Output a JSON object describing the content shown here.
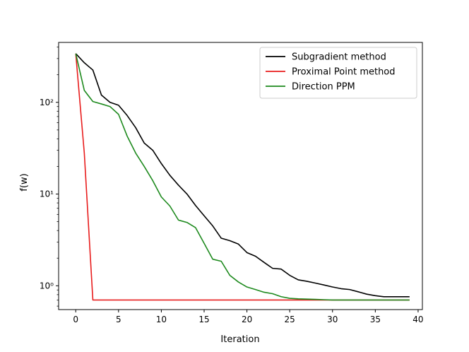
{
  "chart_data": {
    "type": "line",
    "title": "",
    "xlabel": "Iteration",
    "ylabel": "f(w)",
    "xlim": [
      -2,
      40.5
    ],
    "ylim": [
      0.55,
      450
    ],
    "yscale": "log",
    "xticks": [
      0,
      5,
      10,
      15,
      20,
      25,
      30,
      35,
      40
    ],
    "xtick_labels": [
      "0",
      "5",
      "10",
      "15",
      "20",
      "25",
      "30",
      "35",
      "40"
    ],
    "yticks": [
      1,
      10,
      100
    ],
    "ytick_labels": [
      "10⁰",
      "10¹",
      "10²"
    ],
    "grid": false,
    "legend_position": "top-right",
    "series": [
      {
        "name": "Subgradient method",
        "color": "#000000",
        "x": [
          0,
          1,
          2,
          3,
          4,
          5,
          6,
          7,
          8,
          9,
          10,
          11,
          12,
          13,
          14,
          15,
          16,
          17,
          18,
          19,
          20,
          21,
          22,
          23,
          24,
          25,
          26,
          27,
          28,
          29,
          30,
          31,
          32,
          33,
          34,
          35,
          36,
          37,
          38,
          39
        ],
        "y": [
          340,
          270,
          225,
          120,
          100,
          93,
          72,
          53,
          36,
          30,
          21.5,
          16,
          12.5,
          10,
          7.5,
          5.8,
          4.5,
          3.3,
          3.1,
          2.85,
          2.3,
          2.1,
          1.8,
          1.55,
          1.52,
          1.3,
          1.16,
          1.12,
          1.07,
          1.02,
          0.97,
          0.93,
          0.91,
          0.86,
          0.81,
          0.78,
          0.76,
          0.76,
          0.76,
          0.76
        ]
      },
      {
        "name": "Proximal Point method",
        "color": "#e81c1c",
        "x": [
          0,
          1,
          2,
          3,
          4,
          5,
          6,
          7,
          8,
          9,
          10,
          11,
          12,
          13,
          14,
          15,
          16,
          17,
          18,
          19,
          20,
          21,
          22,
          23,
          24,
          25,
          26,
          27,
          28,
          29,
          30,
          31,
          32,
          33,
          34,
          35,
          36,
          37,
          38,
          39
        ],
        "y": [
          340,
          28,
          0.7,
          0.7,
          0.7,
          0.7,
          0.7,
          0.7,
          0.7,
          0.7,
          0.7,
          0.7,
          0.7,
          0.7,
          0.7,
          0.7,
          0.7,
          0.7,
          0.7,
          0.7,
          0.7,
          0.7,
          0.7,
          0.7,
          0.7,
          0.7,
          0.7,
          0.7,
          0.7,
          0.7,
          0.7,
          0.7,
          0.7,
          0.7,
          0.7,
          0.7,
          0.7,
          0.7,
          0.7,
          0.7
        ]
      },
      {
        "name": "Direction PPM",
        "color": "#1e8a1e",
        "x": [
          0,
          1,
          2,
          3,
          4,
          5,
          6,
          7,
          8,
          9,
          10,
          11,
          12,
          13,
          14,
          15,
          16,
          17,
          18,
          19,
          20,
          21,
          22,
          23,
          24,
          25,
          26,
          27,
          28,
          29,
          30,
          31,
          32,
          33,
          34,
          35,
          36,
          37,
          38,
          39
        ],
        "y": [
          340,
          135,
          102,
          96,
          90,
          74,
          43,
          28,
          20,
          14,
          9.3,
          7.4,
          5.2,
          4.9,
          4.3,
          2.9,
          1.95,
          1.85,
          1.3,
          1.1,
          0.97,
          0.91,
          0.85,
          0.82,
          0.76,
          0.73,
          0.72,
          0.715,
          0.71,
          0.705,
          0.7,
          0.7,
          0.7,
          0.7,
          0.7,
          0.7,
          0.7,
          0.7,
          0.7,
          0.7
        ]
      }
    ]
  }
}
